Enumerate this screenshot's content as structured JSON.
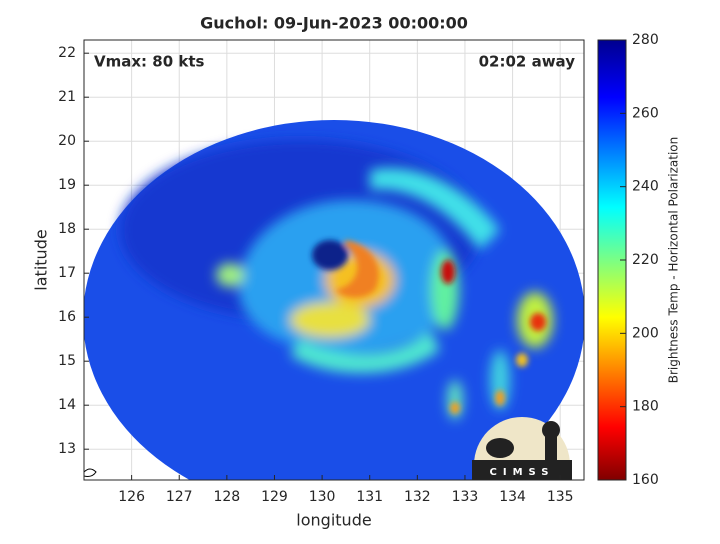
{
  "chart_data": {
    "type": "image",
    "title": "Guchol: 09-Jun-2023 00:00:00",
    "annotations": [
      "Vmax: 80 kts",
      "02:02 away"
    ],
    "xlabel": "longitude",
    "ylabel": "latitude",
    "xlim": [
      125,
      135.5
    ],
    "xticks": [
      126,
      127,
      128,
      129,
      130,
      131,
      132,
      133,
      134,
      135
    ],
    "ylim": [
      12.3,
      22.3
    ],
    "yticks": [
      13,
      14,
      15,
      16,
      17,
      18,
      19,
      20,
      21,
      22
    ],
    "colorbar": {
      "label": "Brightness Temp - Horizontal Polarization",
      "lim": [
        160,
        280
      ],
      "ticks": [
        160,
        180,
        200,
        220,
        240,
        260,
        280
      ],
      "colormap": "jet"
    },
    "grid": true,
    "logo": "CIMSS"
  }
}
